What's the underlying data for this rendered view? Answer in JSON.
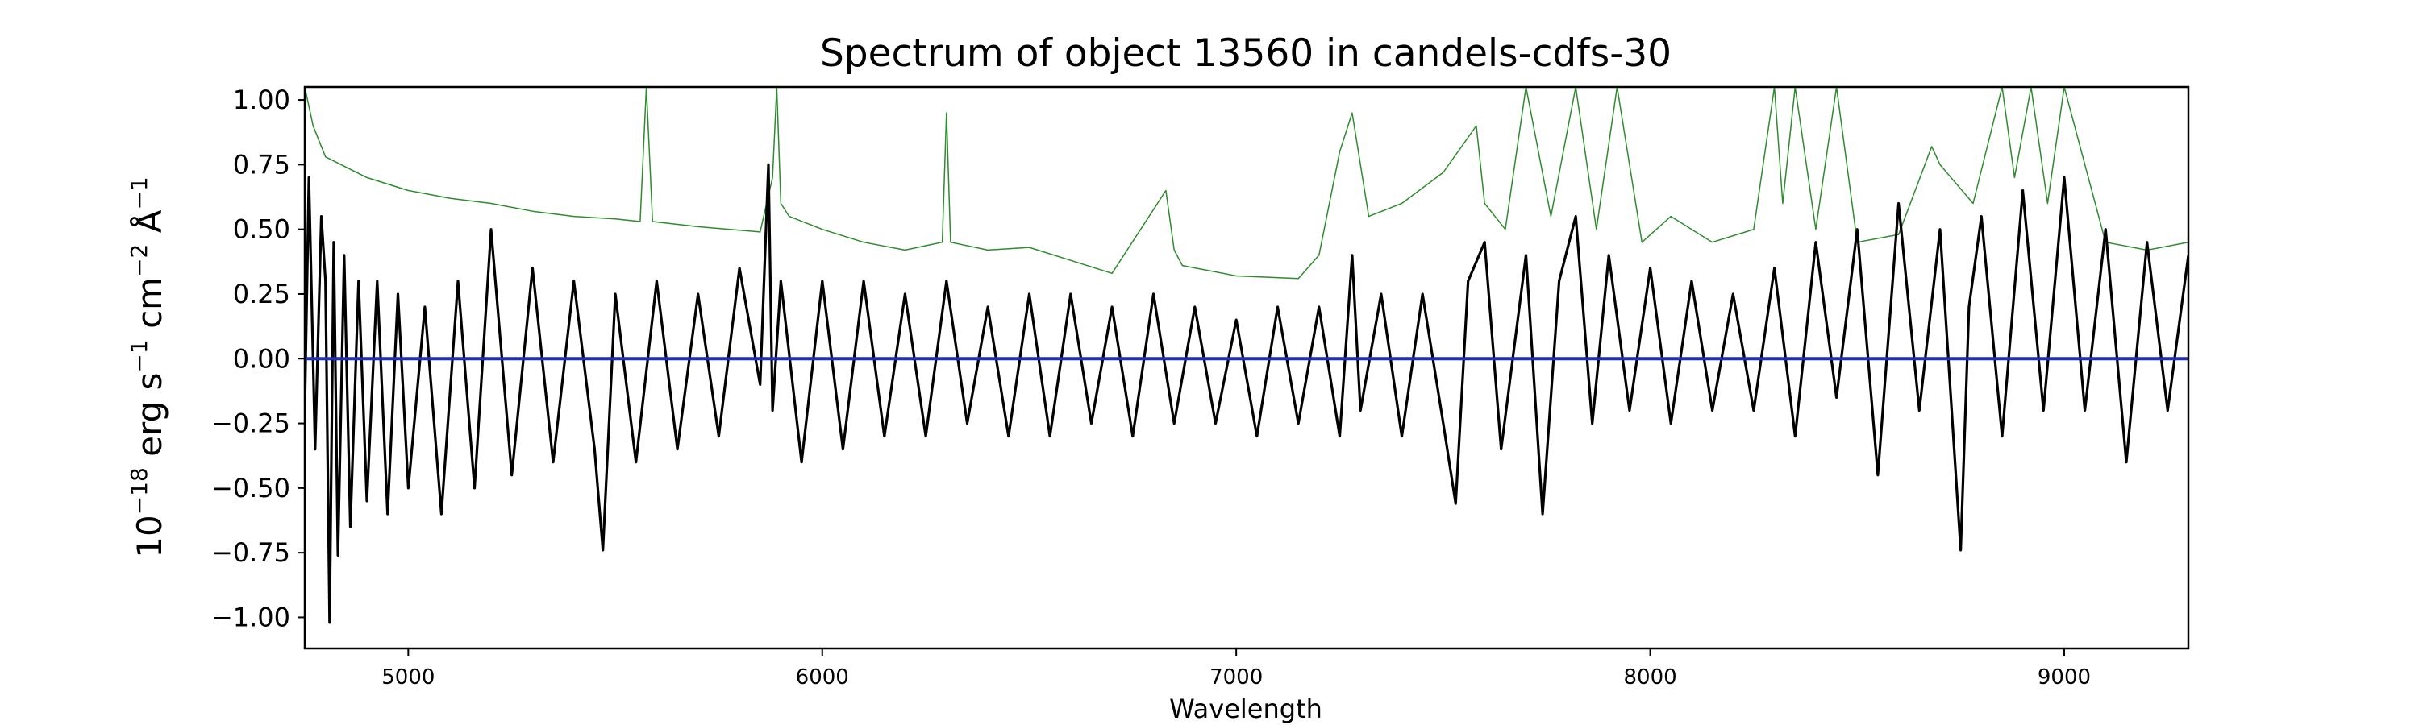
{
  "chart_data": {
    "type": "line",
    "title": "Spectrum of object 13560 in candels-cdfs-30",
    "xlabel": "Wavelength",
    "ylabel": "10^-18 erg s^-1 cm^-2 Å^-1",
    "xlim": [
      4750,
      9300
    ],
    "ylim": [
      -1.12,
      1.05
    ],
    "x_ticks": [
      5000,
      6000,
      7000,
      8000,
      9000
    ],
    "x_tick_labels": [
      "5000",
      "6000",
      "7000",
      "8000",
      "9000"
    ],
    "y_ticks": [
      1.0,
      0.75,
      0.5,
      0.25,
      0.0,
      -0.25,
      -0.5,
      -0.75,
      -1.0
    ],
    "y_tick_labels": [
      "1.00",
      "0.75",
      "0.50",
      "0.25",
      "0.00",
      "−0.25",
      "−0.50",
      "−0.75",
      "−1.00"
    ],
    "grid": false,
    "series": [
      {
        "color": "#2e8b2e",
        "x": [
          4750,
          4770,
          4800,
          4850,
          4900,
          5000,
          5100,
          5200,
          5300,
          5400,
          5500,
          5560,
          5575,
          5590,
          5700,
          5850,
          5880,
          5890,
          5900,
          5920,
          6000,
          6100,
          6200,
          6290,
          6300,
          6310,
          6400,
          6500,
          6600,
          6700,
          6830,
          6850,
          6870,
          7000,
          7150,
          7200,
          7250,
          7280,
          7320,
          7400,
          7500,
          7580,
          7600,
          7650,
          7700,
          7760,
          7820,
          7870,
          7920,
          7980,
          8050,
          8150,
          8250,
          8300,
          8320,
          8350,
          8400,
          8450,
          8500,
          8600,
          8680,
          8700,
          8780,
          8850,
          8880,
          8920,
          8960,
          9000,
          9100,
          9200,
          9300
        ],
        "values": [
          1.05,
          0.9,
          0.78,
          0.74,
          0.7,
          0.65,
          0.62,
          0.6,
          0.57,
          0.55,
          0.54,
          0.53,
          1.05,
          0.53,
          0.51,
          0.49,
          0.7,
          1.05,
          0.6,
          0.55,
          0.5,
          0.45,
          0.42,
          0.45,
          0.95,
          0.45,
          0.42,
          0.43,
          0.38,
          0.33,
          0.65,
          0.42,
          0.36,
          0.32,
          0.31,
          0.4,
          0.8,
          0.95,
          0.55,
          0.6,
          0.72,
          0.9,
          0.6,
          0.5,
          1.05,
          0.55,
          1.05,
          0.5,
          1.05,
          0.45,
          0.55,
          0.45,
          0.5,
          1.05,
          0.6,
          1.05,
          0.5,
          1.05,
          0.45,
          0.48,
          0.82,
          0.75,
          0.6,
          1.05,
          0.7,
          1.05,
          0.6,
          1.05,
          0.45,
          0.42,
          0.45
        ]
      },
      {
        "color": "#000000",
        "x": [
          4750,
          4760,
          4775,
          4790,
          4800,
          4810,
          4820,
          4830,
          4845,
          4860,
          4880,
          4900,
          4925,
          4950,
          4975,
          5000,
          5040,
          5080,
          5120,
          5160,
          5200,
          5250,
          5300,
          5350,
          5400,
          5450,
          5470,
          5500,
          5550,
          5600,
          5650,
          5700,
          5750,
          5800,
          5850,
          5870,
          5880,
          5900,
          5950,
          6000,
          6050,
          6100,
          6150,
          6200,
          6250,
          6300,
          6350,
          6400,
          6450,
          6500,
          6550,
          6600,
          6650,
          6700,
          6750,
          6800,
          6850,
          6900,
          6950,
          7000,
          7050,
          7100,
          7150,
          7200,
          7250,
          7280,
          7300,
          7350,
          7400,
          7450,
          7500,
          7530,
          7560,
          7600,
          7640,
          7700,
          7740,
          7780,
          7820,
          7860,
          7900,
          7950,
          8000,
          8050,
          8100,
          8150,
          8200,
          8250,
          8300,
          8350,
          8400,
          8450,
          8500,
          8550,
          8600,
          8650,
          8700,
          8750,
          8770,
          8800,
          8850,
          8900,
          8950,
          9000,
          9050,
          9100,
          9150,
          9200,
          9250,
          9300
        ],
        "values": [
          -0.2,
          0.7,
          -0.35,
          0.55,
          0.3,
          -1.02,
          0.45,
          -0.76,
          0.4,
          -0.65,
          0.3,
          -0.55,
          0.3,
          -0.6,
          0.25,
          -0.5,
          0.2,
          -0.6,
          0.3,
          -0.5,
          0.5,
          -0.45,
          0.35,
          -0.4,
          0.3,
          -0.35,
          -0.74,
          0.25,
          -0.4,
          0.3,
          -0.35,
          0.25,
          -0.3,
          0.35,
          -0.1,
          0.75,
          -0.2,
          0.3,
          -0.4,
          0.3,
          -0.35,
          0.3,
          -0.3,
          0.25,
          -0.3,
          0.3,
          -0.25,
          0.2,
          -0.3,
          0.25,
          -0.3,
          0.25,
          -0.25,
          0.2,
          -0.3,
          0.25,
          -0.25,
          0.2,
          -0.25,
          0.15,
          -0.3,
          0.2,
          -0.25,
          0.2,
          -0.3,
          0.4,
          -0.2,
          0.25,
          -0.3,
          0.25,
          -0.25,
          -0.56,
          0.3,
          0.45,
          -0.35,
          0.4,
          -0.6,
          0.3,
          0.55,
          -0.25,
          0.4,
          -0.2,
          0.35,
          -0.25,
          0.3,
          -0.2,
          0.25,
          -0.2,
          0.35,
          -0.3,
          0.45,
          -0.15,
          0.5,
          -0.45,
          0.6,
          -0.2,
          0.5,
          -0.74,
          0.2,
          0.55,
          -0.3,
          0.65,
          -0.2,
          0.7,
          -0.2,
          0.5,
          -0.4,
          0.45,
          -0.2,
          0.4
        ]
      },
      {
        "color": "#1f2fb8",
        "x": [
          4750,
          9300
        ],
        "values": [
          0.0,
          0.0
        ]
      }
    ]
  }
}
